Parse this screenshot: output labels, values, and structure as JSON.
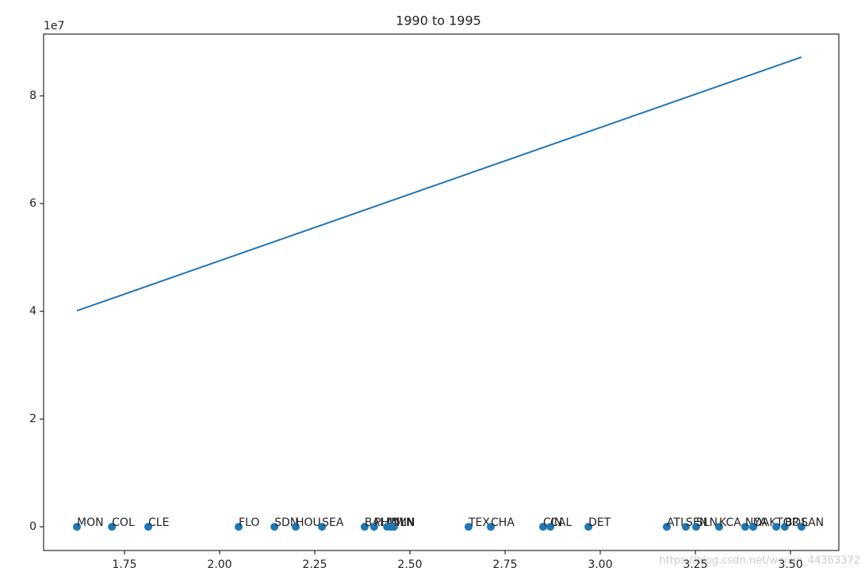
{
  "chart_data": {
    "type": "scatter",
    "title": "1990 to 1995",
    "y_offset_label": "1e7",
    "points": {
      "color": "#1f77b4",
      "labels": [
        "MON",
        "COL",
        "CLE",
        "FLO",
        "SDN",
        "HOU",
        "SEA",
        "BAL",
        "PHI",
        "MIL",
        "NYN",
        "MIN",
        "TEX",
        "CHA",
        "CIN",
        "CAL",
        "DET",
        "ATL",
        "SFN",
        "SLN",
        "KCA",
        "NYA",
        "OAK",
        "TOR",
        "BOS",
        "LAN"
      ],
      "x": [
        1.625,
        1.717,
        1.8125,
        2.05,
        2.144,
        2.2,
        2.269,
        2.381,
        2.406,
        2.44,
        2.45,
        2.458,
        2.654,
        2.7125,
        2.85,
        2.869,
        2.969,
        3.175,
        3.225,
        3.252,
        3.3125,
        3.381,
        3.402,
        3.4625,
        3.485,
        3.529
      ],
      "values": [
        0,
        0,
        0,
        0,
        0,
        0,
        0,
        0,
        0,
        0,
        0,
        0,
        0,
        0,
        0,
        0,
        0,
        0,
        0,
        0,
        0,
        0,
        0,
        0,
        0,
        0
      ]
    },
    "line": {
      "color": "#1f77b4",
      "x": [
        1.625,
        3.529
      ],
      "values": [
        4.01,
        8.72
      ]
    },
    "xlim": [
      1.5375,
      3.627
    ],
    "ylim": [
      -0.44,
      9.147
    ],
    "xticks": [
      1.75,
      {
        "value": 2,
        "label": "2.00"
      },
      2.25,
      {
        "value": 2.5,
        "label": "2.50"
      },
      2.75,
      {
        "value": 3,
        "label": "3.00"
      },
      3.25,
      {
        "value": 3.5,
        "label": "3.50"
      }
    ],
    "yticks": [
      0,
      2,
      4,
      6,
      8
    ],
    "watermark": "https://blog.csdn.net/weixin_44363372"
  }
}
